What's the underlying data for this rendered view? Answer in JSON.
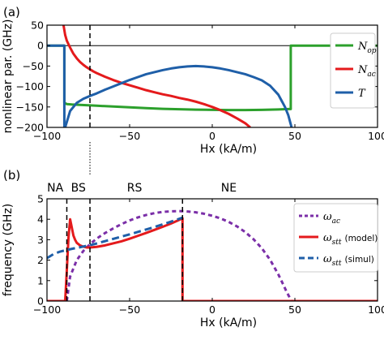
{
  "chart_data": [
    {
      "panel": "(a)",
      "type": "line",
      "xlabel": "Hx (kA/m)",
      "ylabel": "nonlinear par. (GHz)",
      "xlim": [
        -100,
        100
      ],
      "ylim": [
        -200,
        50
      ],
      "xticks": [
        -100,
        -50,
        0,
        50,
        100
      ],
      "xtick_labels": [
        "−100",
        "−50",
        "0",
        "50",
        "100"
      ],
      "yticks": [
        -200,
        -150,
        -100,
        -50,
        0,
        50
      ],
      "ytick_labels": [
        "−200",
        "−150",
        "−100",
        "−50",
        "0",
        "50"
      ],
      "grid": false,
      "legend_position": "top-right",
      "vline_x": -74,
      "series": [
        {
          "name": "N_op",
          "name_main": "N",
          "name_sub": "op",
          "color": "#2ca02c",
          "x": [
            -100,
            -89.5,
            -89.5,
            -88,
            -85,
            -80,
            -70,
            -60,
            -50,
            -40,
            -30,
            -20,
            -10,
            0,
            10,
            20,
            30,
            40,
            46,
            47.5,
            47.5,
            100
          ],
          "y": [
            0,
            0,
            -140,
            -143,
            -144,
            -145,
            -147,
            -149,
            -151,
            -153,
            -154.5,
            -155.5,
            -156.5,
            -157,
            -157.5,
            -157.5,
            -157,
            -156,
            -155,
            -155,
            0,
            0
          ]
        },
        {
          "name": "N_ac",
          "name_main": "N",
          "name_sub": "ac",
          "color": "#e41a1c",
          "x": [
            -90,
            -89,
            -88,
            -86,
            -84,
            -82,
            -80,
            -78,
            -76,
            -74,
            -72,
            -70,
            -65,
            -60,
            -55,
            -50,
            -45,
            -40,
            -35,
            -30,
            -25,
            -20,
            -15,
            -10,
            -5,
            0,
            5,
            10,
            15,
            20,
            23
          ],
          "y": [
            50,
            26,
            12,
            -5,
            -20,
            -31,
            -40,
            -47,
            -53,
            -58,
            -63,
            -67,
            -76,
            -84,
            -91,
            -97,
            -103,
            -109,
            -114,
            -119,
            -123,
            -128,
            -132,
            -137,
            -143,
            -150,
            -158,
            -167,
            -178,
            -190,
            -200
          ]
        },
        {
          "name": "T",
          "name_main": "T",
          "name_sub": "",
          "color": "#1f5fa8",
          "x": [
            -89,
            -86,
            -82,
            -78,
            -74,
            -70,
            -65,
            -60,
            -55,
            -50,
            -45,
            -40,
            -35,
            -30,
            -25,
            -20,
            -15,
            -10,
            -5,
            0,
            5,
            10,
            15,
            20,
            25,
            30,
            35,
            40,
            42,
            44,
            46,
            47,
            48
          ],
          "y": [
            -200,
            -160,
            -140,
            -130,
            -123,
            -117,
            -108,
            -100,
            -92,
            -84,
            -77,
            -70,
            -65,
            -60,
            -56,
            -53,
            -51,
            -50,
            -51,
            -53,
            -56,
            -60,
            -65,
            -70,
            -77,
            -85,
            -98,
            -120,
            -135,
            -150,
            -170,
            -185,
            -200
          ]
        },
        {
          "name": "",
          "color": "#1f5fa8",
          "role": "vertical-edge",
          "x": [
            -100,
            -89.5,
            -89.5
          ],
          "y": [
            0,
            0,
            -200
          ]
        }
      ]
    },
    {
      "panel": "(b)",
      "type": "line",
      "xlabel": "Hx (kA/m)",
      "ylabel": "frequency (GHz)",
      "xlim": [
        -100,
        100
      ],
      "ylim": [
        0,
        5
      ],
      "xticks": [
        -100,
        -50,
        0,
        50,
        100
      ],
      "xtick_labels": [
        "−100",
        "−50",
        "0",
        "50",
        "100"
      ],
      "yticks": [
        0,
        1,
        2,
        3,
        4,
        5
      ],
      "ytick_labels": [
        "0",
        "1",
        "2",
        "3",
        "4",
        "5"
      ],
      "grid": false,
      "legend_position": "top-right",
      "vlines": [
        -88,
        -74,
        -18
      ],
      "regions": [
        {
          "label": "NA",
          "x": -95
        },
        {
          "label": "BS",
          "x": -81
        },
        {
          "label": "RS",
          "x": -47
        },
        {
          "label": "NE",
          "x": 10
        }
      ],
      "series": [
        {
          "name": "ωac",
          "name_main": "ω",
          "name_sub": "ac",
          "note": "",
          "color": "#7b2fa8",
          "style": "dotted",
          "x": [
            -88,
            -86,
            -82,
            -78,
            -74,
            -70,
            -65,
            -60,
            -55,
            -50,
            -45,
            -40,
            -35,
            -30,
            -25,
            -20,
            -15,
            -10,
            -5,
            0,
            5,
            10,
            15,
            20,
            25,
            30,
            35,
            40,
            43,
            45,
            47,
            48
          ],
          "y": [
            0,
            1.2,
            2.0,
            2.45,
            2.78,
            3.05,
            3.32,
            3.55,
            3.76,
            3.94,
            4.09,
            4.21,
            4.3,
            4.36,
            4.39,
            4.4,
            4.38,
            4.34,
            4.27,
            4.17,
            4.04,
            3.87,
            3.65,
            3.37,
            3.02,
            2.58,
            2.02,
            1.3,
            0.8,
            0.45,
            0.15,
            0
          ]
        },
        {
          "name": "ωstt (model)",
          "name_main": "ω",
          "name_sub": "stt",
          "note": "(model)",
          "color": "#e41a1c",
          "style": "solid",
          "x": [
            -100,
            -89,
            -88,
            -87,
            -86,
            -85,
            -84,
            -83,
            -82,
            -80,
            -78,
            -76,
            -74,
            -70,
            -65,
            -60,
            -55,
            -50,
            -45,
            -40,
            -35,
            -30,
            -25,
            -20,
            -18,
            -18,
            -17,
            100
          ],
          "y": [
            0,
            0,
            1.5,
            3.1,
            4.0,
            3.6,
            3.2,
            3.0,
            2.85,
            2.72,
            2.66,
            2.62,
            2.62,
            2.65,
            2.72,
            2.82,
            2.92,
            3.05,
            3.19,
            3.33,
            3.48,
            3.63,
            3.79,
            3.97,
            4.05,
            0,
            0,
            0
          ]
        },
        {
          "name": "ωstt (simul)",
          "name_main": "ω",
          "name_sub": "stt",
          "note": "(simul)",
          "color": "#1f5fa8",
          "style": "dashed",
          "x": [
            -100,
            -96,
            -92,
            -88,
            -84,
            -80,
            -76,
            -72,
            -68,
            -64,
            -60,
            -55,
            -50,
            -45,
            -40,
            -35,
            -30,
            -25,
            -20,
            -18
          ],
          "y": [
            2.1,
            2.3,
            2.42,
            2.5,
            2.57,
            2.63,
            2.7,
            2.77,
            2.86,
            2.95,
            3.04,
            3.15,
            3.26,
            3.38,
            3.5,
            3.62,
            3.75,
            3.88,
            4.02,
            4.08
          ]
        }
      ]
    }
  ]
}
